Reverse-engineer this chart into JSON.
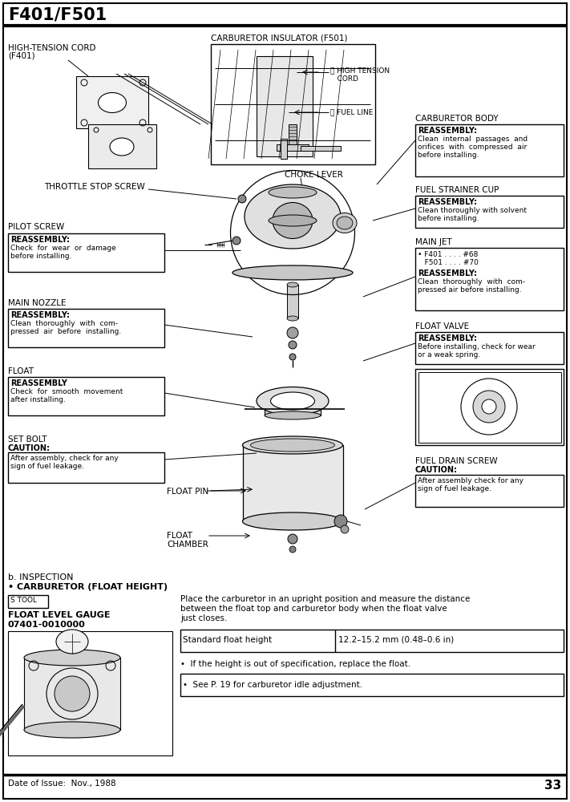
{
  "title": "F401/F501",
  "bg_color": "#ffffff",
  "footer_date": "Date of Issue:  Nov., 1988",
  "footer_page": "33"
}
